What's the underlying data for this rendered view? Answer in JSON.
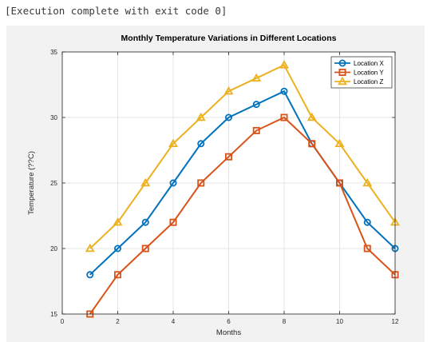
{
  "console": {
    "text": "[Execution complete with exit code 0]"
  },
  "chart_data": {
    "type": "line",
    "title": "Monthly Temperature Variations in Different Locations",
    "xlabel": "Months",
    "ylabel": "Temperature (??C)",
    "xlim": [
      0,
      12
    ],
    "ylim": [
      15,
      35
    ],
    "xticks": [
      0,
      2,
      4,
      6,
      8,
      10,
      12
    ],
    "yticks": [
      15,
      20,
      25,
      30,
      35
    ],
    "grid": true,
    "legend_location": "top-right",
    "x": [
      1,
      2,
      3,
      4,
      5,
      6,
      7,
      8,
      9,
      10,
      11,
      12
    ],
    "series": [
      {
        "name": "Location X",
        "marker": "circle",
        "color": "#0072BD",
        "values": [
          18,
          20,
          22,
          25,
          28,
          30,
          31,
          32,
          28,
          25,
          22,
          20
        ]
      },
      {
        "name": "Location Y",
        "marker": "square",
        "color": "#D95319",
        "values": [
          15,
          18,
          20,
          22,
          25,
          27,
          29,
          30,
          28,
          25,
          20,
          18
        ]
      },
      {
        "name": "Location Z",
        "marker": "triangle",
        "color": "#EDB120",
        "values": [
          20,
          22,
          25,
          28,
          30,
          32,
          33,
          34,
          30,
          28,
          25,
          22
        ]
      }
    ]
  }
}
